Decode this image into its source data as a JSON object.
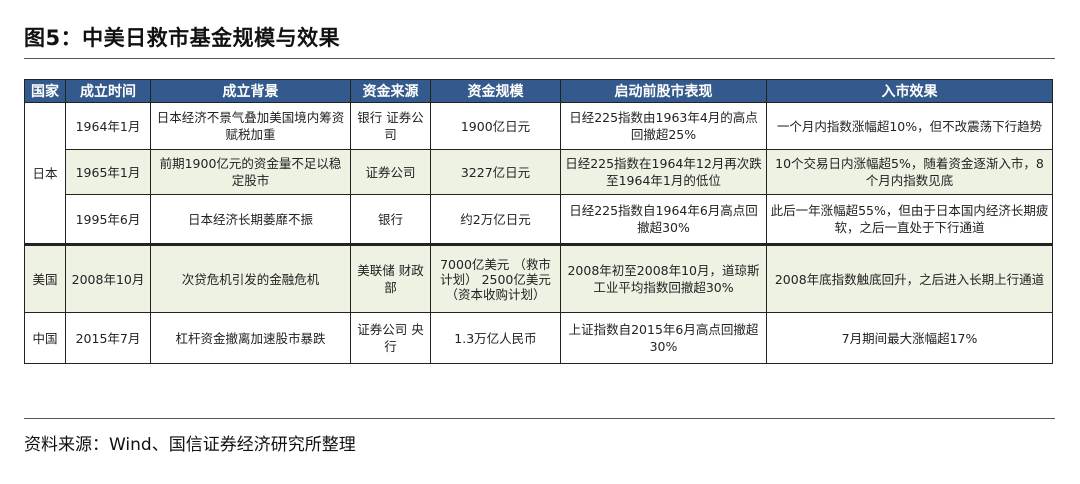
{
  "title": "图5：中美日救市基金规模与效果",
  "headers": [
    "国家",
    "成立时间",
    "成立背景",
    "资金来源",
    "资金规模",
    "启动前股市表现",
    "入市效果"
  ],
  "rows": [
    {
      "country": "日本",
      "time": "1964年1月",
      "background": "日本经济不景气叠加美国境内筹资赋税加重",
      "source": "银行 证券公司",
      "scale": "1900亿日元",
      "before": "日经225指数由1963年4月的高点回撤超25%",
      "effect": "一个月内指数涨幅超10%，但不改震荡下行趋势"
    },
    {
      "time": "1965年1月",
      "background": "前期1900亿元的资金量不足以稳定股市",
      "source": "证券公司",
      "scale": "3227亿日元",
      "before": "日经225指数在1964年12月再次跌至1964年1月的低位",
      "effect": "10个交易日内涨幅超5%，随着资金逐渐入市，8个月内指数见底"
    },
    {
      "time": "1995年6月",
      "background": "日本经济长期萎靡不振",
      "source": "银行",
      "scale": "约2万亿日元",
      "before": "日经225指数自1964年6月高点回撤超30%",
      "effect": "此后一年涨幅超55%，但由于日本国内经济长期疲软，之后一直处于下行通道"
    },
    {
      "country": "美国",
      "time": "2008年10月",
      "background": "次贷危机引发的金融危机",
      "source": "美联储 财政部",
      "scale": "7000亿美元 （救市计划） 2500亿美元 （资本收购计划）",
      "before": "2008年初至2008年10月，道琼斯工业平均指数回撤超30%",
      "effect": "2008年底指数触底回升，之后进入长期上行通道"
    },
    {
      "country": "中国",
      "time": "2015年7月",
      "background": "杠杆资金撤离加速股市暴跌",
      "source": "证券公司 央行",
      "scale": "1.3万亿人民币",
      "before": "上证指数自2015年6月高点回撤超30%",
      "effect": "7月期间最大涨幅超17%"
    }
  ],
  "source_note": "资料来源：Wind、国信证券经济研究所整理",
  "colors": {
    "header_bg": "#34598d",
    "alt_row_bg": "#eef2e3"
  }
}
